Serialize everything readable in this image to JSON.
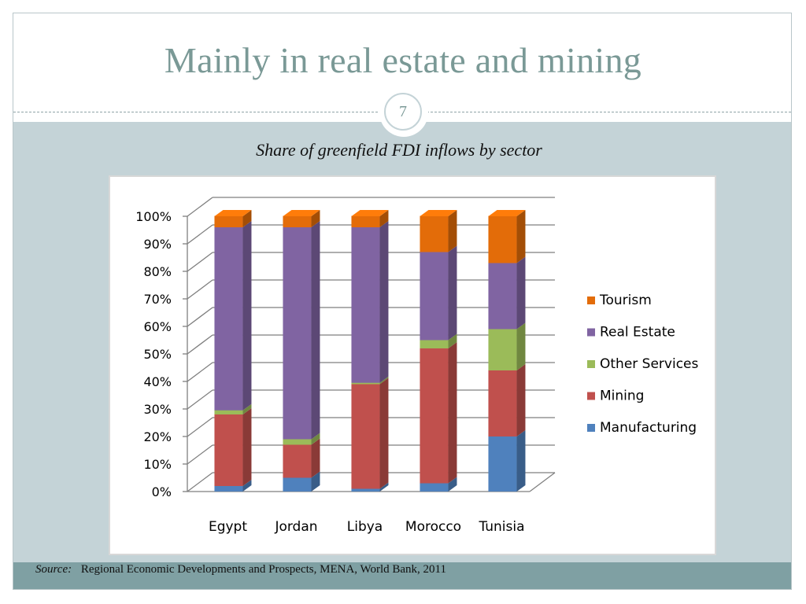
{
  "slide": {
    "title": "Mainly in real estate and mining",
    "page_number": "7",
    "subtitle": "Share of greenfield FDI inflows by sector",
    "source_label": "Source:",
    "source_text": "Regional Economic Developments and Prospects, MENA, World Bank, 2011"
  },
  "colors": {
    "Manufacturing": "#4f81bd",
    "Mining": "#c0504d",
    "Other Services": "#9bbb59",
    "Real Estate": "#8064a2",
    "Tourism": "#e36c09"
  },
  "chart_data": {
    "type": "bar",
    "stacked": true,
    "three_d": true,
    "categories": [
      "Egypt",
      "Jordan",
      "Libya",
      "Morocco",
      "Tunisia"
    ],
    "series": [
      {
        "name": "Manufacturing",
        "values": [
          2,
          5,
          1,
          3,
          20
        ]
      },
      {
        "name": "Mining",
        "values": [
          26,
          12,
          38,
          49,
          24
        ]
      },
      {
        "name": "Other Services",
        "values": [
          1.5,
          2,
          0.5,
          3,
          15
        ]
      },
      {
        "name": "Real Estate",
        "values": [
          66.5,
          77,
          56.5,
          32,
          24
        ]
      },
      {
        "name": "Tourism",
        "values": [
          4,
          4,
          4,
          13,
          17
        ]
      }
    ],
    "y_ticks": [
      "0%",
      "10%",
      "20%",
      "30%",
      "40%",
      "50%",
      "60%",
      "70%",
      "80%",
      "90%",
      "100%"
    ],
    "ylim": [
      0,
      100
    ],
    "legend_order": [
      "Tourism",
      "Real Estate",
      "Other Services",
      "Mining",
      "Manufacturing"
    ],
    "legend_position": "right",
    "grid": true
  }
}
